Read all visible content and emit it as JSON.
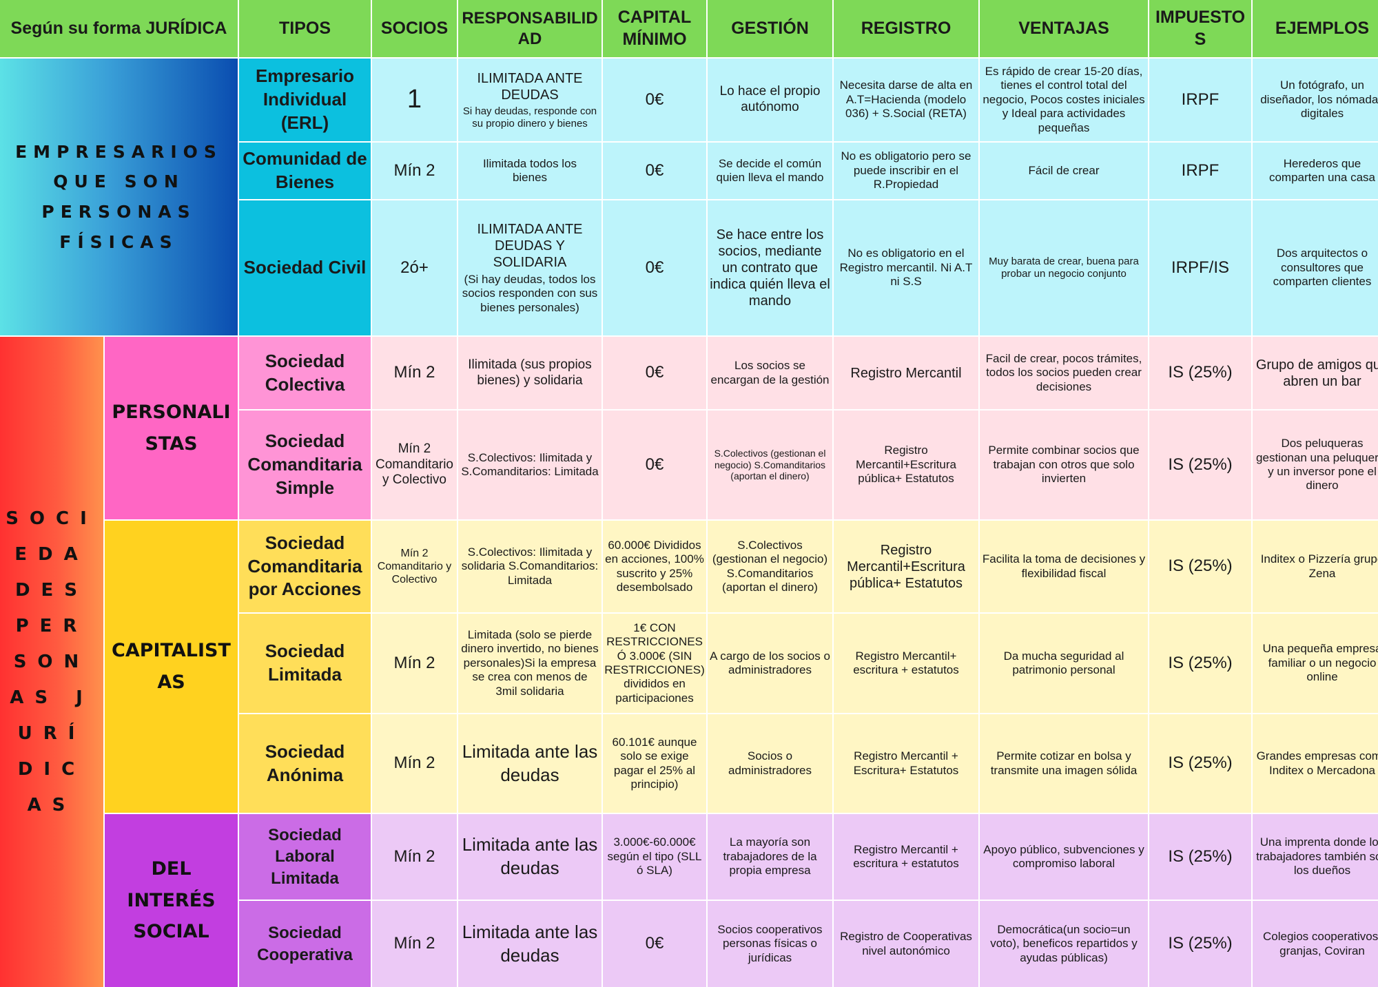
{
  "headers": [
    "Según su forma JURÍDICA",
    "TIPOS",
    "SOCIOS",
    "RESPONSABILIDAD",
    "CAPITAL MÍNIMO",
    "GESTIÓN",
    "REGISTRO",
    "VENTAJAS",
    "IMPUESTOS",
    "EJEMPLOS"
  ],
  "groups": {
    "fisicas": "EMPRESARIOS QUE SON PERSONAS FÍSICAS",
    "juridicas": "SOCIEDADES PERSONAS JURÍDICAS"
  },
  "subgroups": {
    "personalistas": "PERSONALISTAS",
    "capitalistas": "CAPITALISTAS",
    "interes_social": "DEL INTERÉS SOCIAL"
  },
  "rows": [
    {
      "tipo": "Empresario Individual (ERL)",
      "socios": "1",
      "resp": "ILIMITADA ANTE DEUDAS",
      "resp_note": "Si hay deudas, responde con su propio dinero y bienes",
      "capital": "0€",
      "gestion": "Lo hace el propio autónomo",
      "registro": "Necesita darse de alta en A.T=Hacienda (modelo 036) + S.Social (RETA)",
      "ventajas": "Es rápido de crear 15-20 días, tienes el control total del negocio, Pocos costes iniciales y Ideal para actividades pequeñas",
      "impuestos": "IRPF",
      "ejemplos": "Un fotógrafo, un diseñador, los nómadas digitales"
    },
    {
      "tipo": "Comunidad de Bienes",
      "socios": "Mín 2",
      "resp": "Ilimitada todos los bienes",
      "resp_note": "",
      "capital": "0€",
      "gestion": "Se decide el común quien lleva el mando",
      "registro": "No es obligatorio pero se puede inscribir en el R.Propiedad",
      "ventajas": "Fácil de crear",
      "impuestos": "IRPF",
      "ejemplos": "Herederos que comparten una casa"
    },
    {
      "tipo": "Sociedad Civil",
      "socios": "2ó+",
      "resp": "ILIMITADA ANTE DEUDAS Y SOLIDARIA",
      "resp_note": "(Si hay deudas, todos los socios responden con sus bienes personales)",
      "capital": "0€",
      "gestion": "Se hace entre los socios, mediante un contrato que indica quién lleva el mando",
      "registro": "No es obligatorio en el Registro mercantil. Ni A.T ni S.S",
      "ventajas": "Muy barata de crear, buena para probar un negocio conjunto",
      "impuestos": "IRPF/IS",
      "ejemplos": "Dos arquitectos o consultores que comparten clientes"
    },
    {
      "tipo": "Sociedad Colectiva",
      "socios": "Mín 2",
      "resp": "Ilimitada (sus propios bienes) y solidaria",
      "resp_note": "",
      "capital": "0€",
      "gestion": "Los socios se encargan de la gestión",
      "registro": "Registro Mercantil",
      "ventajas": "Facil de crear, pocos trámites, todos los socios pueden crear decisiones",
      "impuestos": "IS (25%)",
      "ejemplos": "Grupo de amigos que abren un bar"
    },
    {
      "tipo": "Sociedad Comanditaria Simple",
      "socios": "Mín 2 Comanditario y Colectivo",
      "resp": "S.Colectivos: Ilimitada y S.Comanditarios: Limitada",
      "resp_note": "",
      "capital": "0€",
      "gestion": "S.Colectivos (gestionan el negocio) S.Comanditarios (aportan el dinero)",
      "registro": "Registro Mercantil+Escritura pública+ Estatutos",
      "ventajas": "Permite combinar socios que trabajan con otros que solo invierten",
      "impuestos": "IS (25%)",
      "ejemplos": "Dos peluqueras gestionan una peluquería y un inversor pone el dinero"
    },
    {
      "tipo": "Sociedad Comanditaria por Acciones",
      "socios": "Mín 2 Comanditario y Colectivo",
      "resp": "S.Colectivos: Ilimitada y solidaria S.Comanditarios: Limitada",
      "resp_note": "",
      "capital": "60.000€ Divididos en acciones, 100% suscrito y 25% desembolsado",
      "gestion": "S.Colectivos (gestionan el negocio) S.Comanditarios (aportan el dinero)",
      "registro": "Registro Mercantil+Escritura pública+ Estatutos",
      "ventajas": "Facilita la toma de decisiones y flexibilidad fiscal",
      "impuestos": "IS (25%)",
      "ejemplos": "Inditex o Pizzería grupo Zena"
    },
    {
      "tipo": "Sociedad Limitada",
      "socios": "Mín 2",
      "resp": "Limitada (solo se pierde dinero invertido, no bienes personales)Si la empresa se crea con menos de 3mil solidaria",
      "resp_note": "",
      "capital": "1€ CON RESTRICCIONES Ó 3.000€ (SIN RESTRICCIONES) divididos en participaciones",
      "gestion": "A cargo de los socios o administradores",
      "registro": "Registro Mercantil+ escritura + estatutos",
      "ventajas": "Da mucha seguridad al patrimonio personal",
      "impuestos": "IS (25%)",
      "ejemplos": "Una pequeña empresa familiar o un negocio online"
    },
    {
      "tipo": "Sociedad Anónima",
      "socios": "Mín 2",
      "resp": "Limitada ante las deudas",
      "resp_note": "",
      "capital": "60.101€ aunque solo se exige pagar el 25% al principio)",
      "gestion": "Socios o administradores",
      "registro": "Registro Mercantil + Escritura+ Estatutos",
      "ventajas": "Permite cotizar en bolsa y transmite una imagen sólida",
      "impuestos": "IS (25%)",
      "ejemplos": "Grandes empresas como Inditex o Mercadona"
    },
    {
      "tipo": "Sociedad Laboral Limitada",
      "socios": "Mín 2",
      "resp": "Limitada ante las deudas",
      "resp_note": "",
      "capital": "3.000€-60.000€ según el tipo (SLL ó SLA)",
      "gestion": "La mayoría son trabajadores de la propia empresa",
      "registro": "Registro Mercantil + escritura + estatutos",
      "ventajas": "Apoyo público, subvenciones y compromiso laboral",
      "impuestos": "IS (25%)",
      "ejemplos": "Una imprenta donde los trabajadores también son los dueños"
    },
    {
      "tipo": "Sociedad Cooperativa",
      "socios": "Mín 2",
      "resp": "Limitada ante las deudas",
      "resp_note": "",
      "capital": "0€",
      "gestion": "Socios cooperativos personas físicas o jurídicas",
      "registro": "Registro de Cooperativas nivel autonómico",
      "ventajas": "Democrática(un socio=un voto), beneficos repartidos y ayudas públicas)",
      "impuestos": "IS (25%)",
      "ejemplos": "Colegios cooperativos, granjas, Coviran"
    }
  ],
  "colors": {
    "header": "#7ed957",
    "blue_light": "#bdf4fb",
    "blue_dark": "#0cc0df",
    "pink_light": "#ffe0e6",
    "pink_dark": "#ff66c4",
    "yellow_light": "#fff6c4",
    "yellow_dark": "#ffd21f",
    "purple_light": "#ecc9f6",
    "purple_dark": "#c23ee0"
  }
}
